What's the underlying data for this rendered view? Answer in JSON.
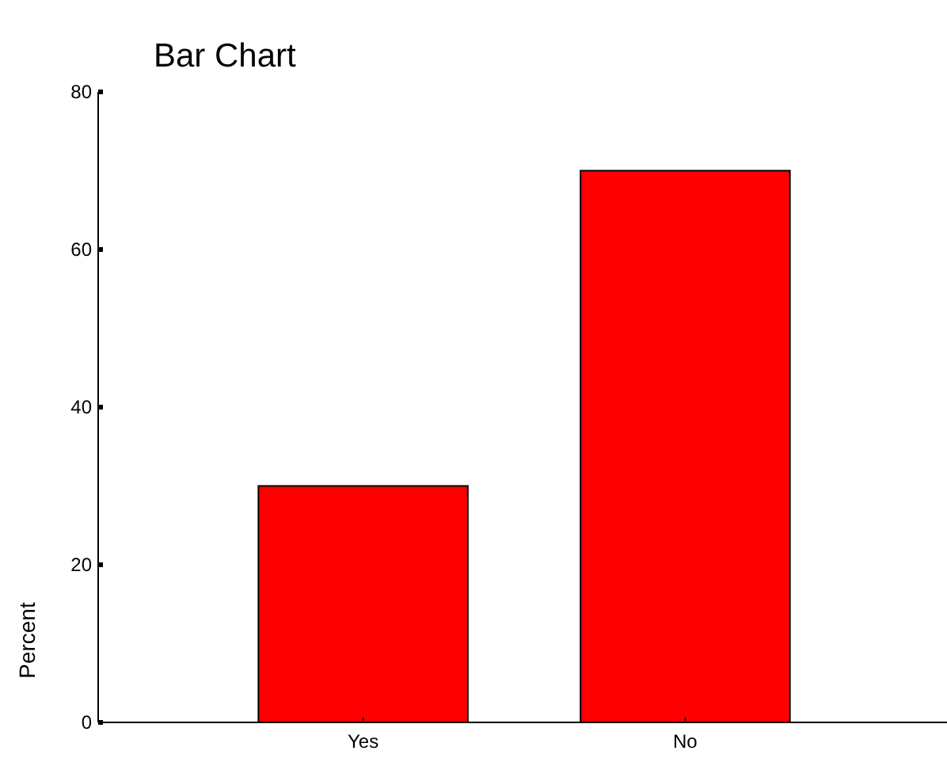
{
  "chart_data": {
    "type": "bar",
    "title": "Bar Chart",
    "ylabel": "Percent",
    "categories": [
      "Yes",
      "No"
    ],
    "values": [
      30,
      70
    ],
    "color": "#ff0000",
    "ylim": [
      0,
      80
    ],
    "yticks": [
      0,
      20,
      40,
      60,
      80
    ],
    "grid": false,
    "legend": false
  }
}
